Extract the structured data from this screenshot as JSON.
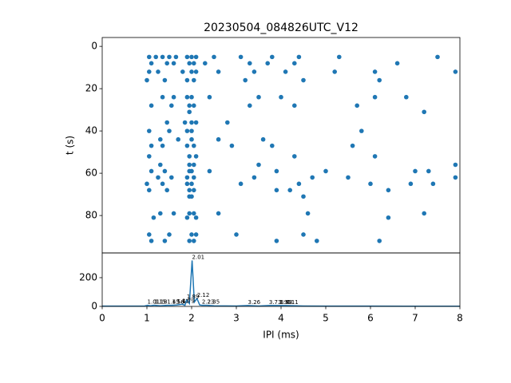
{
  "chart_data": [
    {
      "type": "scatter",
      "title": "20230504_084826UTC_V12",
      "ylabel": "t (s)",
      "color": "#1f77b4",
      "xlim": [
        0,
        8
      ],
      "ylim": [
        97.7,
        -4.2
      ],
      "yticks": [
        0,
        20,
        40,
        60,
        80
      ],
      "x": [
        1.05,
        1.2,
        1.35,
        1.5,
        1.65,
        1.9,
        2.0,
        2.1,
        2.5,
        3.1,
        3.8,
        4.4,
        5.3,
        7.5,
        1.1,
        1.45,
        1.6,
        1.95,
        2.05,
        2.3,
        3.3,
        3.7,
        4.3,
        6.6,
        1.05,
        1.25,
        1.8,
        2.0,
        2.1,
        2.6,
        3.4,
        4.1,
        5.2,
        6.1,
        7.9,
        1.0,
        1.4,
        1.9,
        2.05,
        3.2,
        4.5,
        6.2,
        1.35,
        1.6,
        1.9,
        2.0,
        2.4,
        3.5,
        4.0,
        6.1,
        6.8,
        1.1,
        1.55,
        1.95,
        2.05,
        3.3,
        4.3,
        5.7,
        1.95,
        7.2,
        1.45,
        1.85,
        2.0,
        2.1,
        2.8,
        1.05,
        1.5,
        1.9,
        2.0,
        5.8,
        1.3,
        1.7,
        2.0,
        2.6,
        3.6,
        1.1,
        1.35,
        1.9,
        2.05,
        2.9,
        3.8,
        5.6,
        1.05,
        1.95,
        2.1,
        4.3,
        6.1,
        1.3,
        1.95,
        2.05,
        3.5,
        7.9,
        1.1,
        1.4,
        1.95,
        2.0,
        2.4,
        3.9,
        5.0,
        7.0,
        7.3,
        1.25,
        1.55,
        1.9,
        2.05,
        3.4,
        4.7,
        5.5,
        7.9,
        1.0,
        1.35,
        1.9,
        2.0,
        3.1,
        4.4,
        6.0,
        6.9,
        7.4,
        1.05,
        1.45,
        1.95,
        2.05,
        3.9,
        4.2,
        6.4,
        1.95,
        2.0,
        4.5,
        1.3,
        1.6,
        1.95,
        2.05,
        2.6,
        4.6,
        7.2,
        1.15,
        1.9,
        2.1,
        6.4,
        1.05,
        1.5,
        2.0,
        2.1,
        3.0,
        4.5,
        1.1,
        1.4,
        1.95,
        2.05,
        3.9,
        4.8,
        6.2
      ],
      "y": [
        5,
        5,
        5,
        5,
        5,
        5,
        5,
        5,
        5,
        5,
        5,
        5,
        5,
        5,
        8,
        8,
        8,
        8,
        8,
        8,
        8,
        8,
        8,
        8,
        12,
        12,
        12,
        12,
        12,
        12,
        12,
        12,
        12,
        12,
        12,
        16,
        16,
        16,
        16,
        16,
        16,
        16,
        24,
        24,
        24,
        24,
        24,
        24,
        24,
        24,
        24,
        28,
        28,
        28,
        28,
        28,
        28,
        28,
        31,
        31,
        36,
        36,
        36,
        36,
        36,
        40,
        40,
        40,
        40,
        40,
        44,
        44,
        44,
        44,
        44,
        47,
        47,
        47,
        47,
        47,
        47,
        47,
        52,
        52,
        52,
        52,
        52,
        56,
        56,
        56,
        56,
        56,
        59,
        59,
        59,
        59,
        59,
        59,
        59,
        59,
        59,
        62,
        62,
        62,
        62,
        62,
        62,
        62,
        62,
        65,
        65,
        65,
        65,
        65,
        65,
        65,
        65,
        65,
        68,
        68,
        68,
        68,
        68,
        68,
        68,
        71,
        71,
        71,
        79,
        79,
        79,
        79,
        79,
        79,
        79,
        81,
        81,
        81,
        81,
        89,
        89,
        89,
        89,
        89,
        89,
        92,
        92,
        92,
        92,
        92,
        92,
        92
      ]
    },
    {
      "type": "line",
      "xlabel": "IPI (ms)",
      "color": "#1f77b4",
      "xlim": [
        0,
        8
      ],
      "ylim": [
        0,
        372
      ],
      "xticks": [
        0,
        1,
        2,
        3,
        4,
        5,
        6,
        7,
        8
      ],
      "yticks": [
        0,
        200
      ],
      "x": [
        0,
        0.95,
        1.01,
        1.08,
        1.15,
        1.18,
        1.3,
        1.45,
        1.56,
        1.67,
        1.79,
        1.85,
        1.89,
        1.95,
        2.01,
        2.06,
        2.12,
        2.18,
        2.23,
        2.35,
        2.5,
        3.0,
        3.26,
        3.5,
        3.73,
        3.95,
        3.98,
        4.11,
        4.5,
        5,
        6,
        7,
        8
      ],
      "values": [
        2,
        3,
        8,
        4,
        8,
        8,
        4,
        8,
        8,
        10,
        15,
        8,
        45,
        20,
        320,
        30,
        55,
        10,
        8,
        8,
        4,
        3,
        6,
        3,
        6,
        6,
        6,
        6,
        3,
        2,
        2,
        1,
        1
      ],
      "peak_labels": [
        1.01,
        1.15,
        1.18,
        1.45,
        1.56,
        1.67,
        1.79,
        1.89,
        2.01,
        2.12,
        2.23,
        2.35,
        3.26,
        3.73,
        3.95,
        3.98,
        4.11
      ],
      "peak_counts": [
        8,
        8,
        8,
        8,
        8,
        10,
        15,
        45,
        320,
        55,
        8,
        8,
        6,
        6,
        6,
        6,
        6
      ]
    }
  ]
}
